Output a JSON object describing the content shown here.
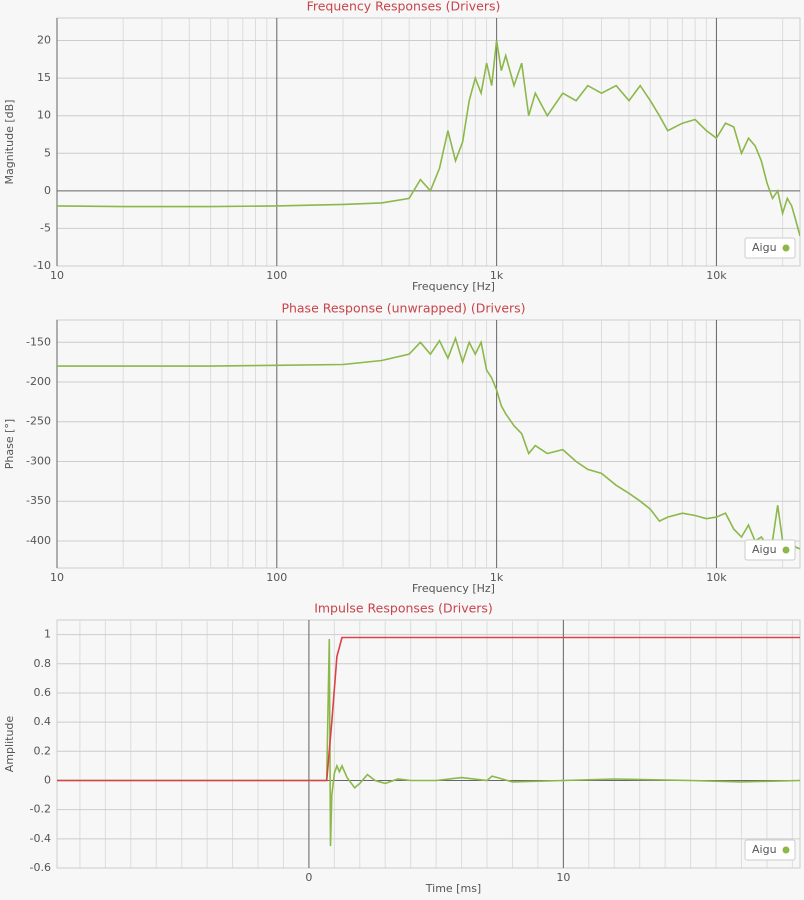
{
  "chart_data": [
    {
      "type": "line",
      "title": "Frequency Responses (Drivers)",
      "xlabel": "Frequency [Hz]",
      "ylabel": "Magnitude [dB]",
      "xscale": "log",
      "grid": true,
      "legend": "lower right",
      "x": [
        10,
        20,
        50,
        100,
        200,
        300,
        400,
        450,
        500,
        550,
        600,
        650,
        700,
        750,
        800,
        850,
        900,
        950,
        1000,
        1050,
        1100,
        1200,
        1300,
        1400,
        1500,
        1700,
        2000,
        2300,
        2600,
        3000,
        3500,
        4000,
        4500,
        5000,
        5500,
        6000,
        7000,
        8000,
        9000,
        10000,
        11000,
        12000,
        13000,
        14000,
        15000,
        16000,
        17000,
        18000,
        19000,
        20000,
        21000,
        22000,
        23000,
        24000
      ],
      "series": [
        {
          "name": "Aigu",
          "color": "#8cb84a",
          "values": [
            -2,
            -2.1,
            -2.1,
            -2,
            -1.8,
            -1.6,
            -1,
            1.5,
            0,
            3,
            8,
            4,
            6.5,
            12,
            15,
            13,
            17,
            14,
            20,
            16,
            18,
            14,
            17,
            10,
            13,
            10,
            13,
            12,
            14,
            13,
            14,
            12,
            14,
            12,
            10,
            8,
            9,
            9.5,
            8,
            7,
            9,
            8.5,
            5,
            7,
            6,
            4,
            1,
            -1,
            0,
            -3,
            -1,
            -2,
            -4,
            -6
          ]
        }
      ],
      "xlim": [
        10,
        24000
      ],
      "xticks": [
        10,
        100,
        {
          "value": 1000,
          "label": "1k"
        },
        {
          "value": 10000,
          "label": "10k"
        }
      ],
      "ylim": [
        -10,
        23
      ],
      "yticks": [
        -10,
        -5,
        0,
        5,
        10,
        15,
        20
      ]
    },
    {
      "type": "line",
      "title": "Phase Response (unwrapped) (Drivers)",
      "xlabel": "Frequency [Hz]",
      "ylabel": "Phase [°]",
      "xscale": "log",
      "grid": true,
      "legend": "lower right",
      "x": [
        10,
        20,
        50,
        100,
        200,
        300,
        400,
        450,
        500,
        550,
        600,
        650,
        700,
        750,
        800,
        850,
        900,
        950,
        1000,
        1050,
        1100,
        1200,
        1300,
        1400,
        1500,
        1700,
        2000,
        2300,
        2600,
        3000,
        3500,
        4000,
        4500,
        5000,
        5500,
        6000,
        7000,
        8000,
        9000,
        10000,
        11000,
        12000,
        13000,
        14000,
        15000,
        16000,
        17000,
        18000,
        19000,
        20000,
        21000,
        22000,
        23000,
        24000
      ],
      "series": [
        {
          "name": "Aigu",
          "color": "#8cb84a",
          "values": [
            -180,
            -180,
            -180,
            -179,
            -178,
            -173,
            -165,
            -150,
            -165,
            -148,
            -170,
            -145,
            -175,
            -150,
            -165,
            -150,
            -185,
            -195,
            -210,
            -230,
            -240,
            -255,
            -265,
            -290,
            -280,
            -290,
            -285,
            -300,
            -310,
            -315,
            -330,
            -340,
            -350,
            -360,
            -375,
            -370,
            -365,
            -368,
            -372,
            -370,
            -365,
            -385,
            -395,
            -380,
            -400,
            -395,
            -405,
            -400,
            -355,
            -400,
            -405,
            -400,
            -408,
            -410
          ]
        }
      ],
      "xlim": [
        10,
        24000
      ],
      "xticks": [
        10,
        100,
        {
          "value": 1000,
          "label": "1k"
        },
        {
          "value": 10000,
          "label": "10k"
        }
      ],
      "ylim": [
        -434,
        -122
      ],
      "yticks": [
        -400,
        -350,
        -300,
        -250,
        -200,
        -150
      ]
    },
    {
      "type": "line",
      "title": "Impulse Responses (Drivers)",
      "xlabel": "Time [ms]",
      "ylabel": "Amplitude",
      "grid": true,
      "legend": "lower right",
      "series": [
        {
          "name": "Aigu",
          "color": "#8cb84a",
          "x": [
            -9.9,
            0.7,
            0.8,
            0.85,
            0.9,
            1.0,
            1.1,
            1.2,
            1.3,
            1.5,
            1.8,
            2.0,
            2.3,
            2.6,
            3.0,
            3.5,
            4,
            5,
            6,
            7,
            7.2,
            8,
            10,
            12,
            15,
            17,
            19.3
          ],
          "values": [
            0,
            0,
            0.97,
            -0.45,
            -0.1,
            0.05,
            0.1,
            0.06,
            0.1,
            0.02,
            -0.05,
            -0.02,
            0.04,
            0,
            -0.02,
            0.01,
            0,
            0,
            0.02,
            0,
            0.03,
            -0.01,
            0,
            0.01,
            0,
            -0.01,
            0
          ]
        },
        {
          "color": "#d9424b",
          "x": [
            -9.9,
            0.7,
            0.9,
            1.1,
            1.3,
            19.3
          ],
          "values": [
            0,
            0,
            0.4,
            0.85,
            0.98,
            0.98
          ]
        }
      ],
      "xlim": [
        -9.9,
        19.3
      ],
      "xticks": [
        0,
        10
      ],
      "ylim": [
        -0.6,
        1.1
      ],
      "yticks": [
        -0.6,
        -0.4,
        -0.2,
        0,
        0.2,
        0.4,
        0.6,
        0.8,
        1
      ]
    }
  ]
}
